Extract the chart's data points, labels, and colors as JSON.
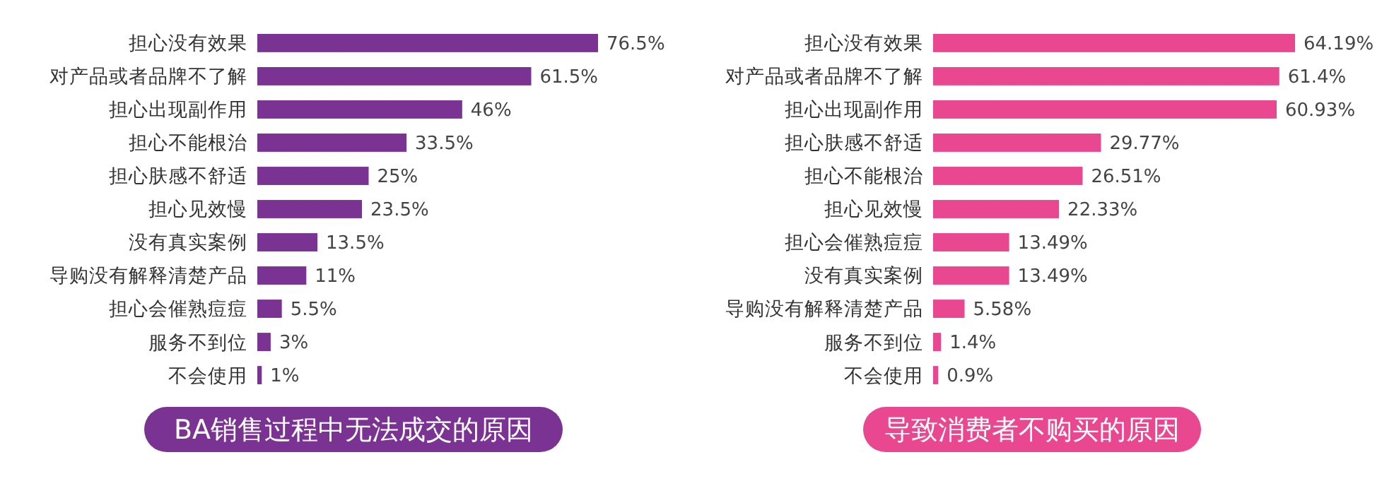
{
  "chart_data": [
    {
      "type": "bar",
      "orientation": "horizontal",
      "title": "BA销售过程中无法成交的原因",
      "categories": [
        "担心没有效果",
        "对产品或者品牌不了解",
        "担心出现副作用",
        "担心不能根治",
        "担心肤感不舒适",
        "担心见效慢",
        "没有真实案例",
        "导购没有解释清楚产品",
        "担心会催熟痘痘",
        "服务不到位",
        "不会使用"
      ],
      "values": [
        76.5,
        61.5,
        46,
        33.5,
        25,
        23.5,
        13.5,
        11,
        5.5,
        3,
        1
      ],
      "value_labels": [
        "76.5%",
        "61.5%",
        "46%",
        "33.5%",
        "25%",
        "23.5%",
        "13.5%",
        "11%",
        "5.5%",
        "3%",
        "1%"
      ],
      "color": "#7b3393"
    },
    {
      "type": "bar",
      "orientation": "horizontal",
      "title": "导致消费者不购买的原因",
      "categories": [
        "担心没有效果",
        "对产品或者品牌不了解",
        "担心出现副作用",
        "担心肤感不舒适",
        "担心不能根治",
        "担心见效慢",
        "担心会催熟痘痘",
        "没有真实案例",
        "导购没有解释清楚产品",
        "服务不到位",
        "不会使用"
      ],
      "values": [
        64.19,
        61.4,
        60.93,
        29.77,
        26.51,
        22.33,
        13.49,
        13.49,
        5.58,
        1.4,
        0.9
      ],
      "value_labels": [
        "64.19%",
        "61.4%",
        "60.93%",
        "29.77%",
        "26.51%",
        "22.33%",
        "13.49%",
        "13.49%",
        "5.58%",
        "1.4%",
        "0.9%"
      ],
      "color": "#e9478f"
    }
  ]
}
